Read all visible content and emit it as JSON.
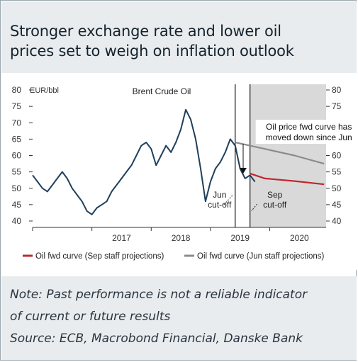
{
  "title_line1": "Stronger exchange rate and lower oil",
  "title_line2": "prices set to weigh on inflation outlook",
  "note_line1": "Note: Past performance is not a reliable indicator",
  "note_line2": "of current or future results",
  "note_line3": "Source: ECB, Macrobond Financial, Danske Bank",
  "chart_data": {
    "type": "line",
    "ylabel": "EUR/bbl",
    "ylim": [
      40,
      80
    ],
    "yticks": [
      40,
      45,
      50,
      55,
      60,
      65,
      70,
      75,
      80
    ],
    "xticks": [
      "2017",
      "2018",
      "2019",
      "2020"
    ],
    "grid": false,
    "legend_position": "bottom",
    "shaded_region": {
      "from": "2019-09",
      "to": "2020-12",
      "color": "#d9d9d9"
    },
    "vertical_lines": [
      {
        "x": "2019-06",
        "label": "Jun\ncut-off"
      },
      {
        "x": "2019-09",
        "label": "Sep\ncut-off"
      }
    ],
    "annotation": "Oil price fwd curve has\nmoved down since Jun",
    "series": [
      {
        "name": "Brent Crude Oil",
        "color": "#1f3f5c",
        "points": [
          [
            "2016-01",
            54
          ],
          [
            "2016-02",
            52
          ],
          [
            "2016-03",
            50
          ],
          [
            "2016-04",
            49
          ],
          [
            "2016-05",
            51
          ],
          [
            "2016-06",
            53
          ],
          [
            "2016-07",
            55
          ],
          [
            "2016-08",
            53
          ],
          [
            "2016-09",
            50
          ],
          [
            "2016-10",
            48
          ],
          [
            "2016-11",
            46
          ],
          [
            "2016-12",
            43
          ],
          [
            "2017-01",
            42
          ],
          [
            "2017-02",
            44
          ],
          [
            "2017-03",
            45
          ],
          [
            "2017-04",
            46
          ],
          [
            "2017-05",
            49
          ],
          [
            "2017-06",
            51
          ],
          [
            "2017-07",
            53
          ],
          [
            "2017-08",
            55
          ],
          [
            "2017-09",
            57
          ],
          [
            "2017-10",
            60
          ],
          [
            "2017-11",
            63
          ],
          [
            "2017-12",
            64
          ],
          [
            "2018-01",
            62
          ],
          [
            "2018-02",
            57
          ],
          [
            "2018-03",
            60
          ],
          [
            "2018-04",
            63
          ],
          [
            "2018-05",
            61
          ],
          [
            "2018-06",
            64
          ],
          [
            "2018-07",
            68
          ],
          [
            "2018-08",
            74
          ],
          [
            "2018-09",
            71
          ],
          [
            "2018-10",
            65
          ],
          [
            "2018-11",
            56
          ],
          [
            "2018-12",
            46
          ],
          [
            "2019-01",
            52
          ],
          [
            "2019-02",
            56
          ],
          [
            "2019-03",
            58
          ],
          [
            "2019-04",
            61
          ],
          [
            "2019-05",
            65
          ],
          [
            "2019-06",
            63
          ],
          [
            "2019-07",
            56
          ],
          [
            "2019-08",
            53
          ],
          [
            "2019-09",
            54
          ],
          [
            "2019-10",
            52
          ]
        ]
      },
      {
        "name": "Oil fwd curve (Jun staff projections)",
        "color": "#8c8c8c",
        "points": [
          [
            "2019-06",
            64
          ],
          [
            "2019-09",
            63
          ],
          [
            "2019-12",
            62
          ],
          [
            "2020-06",
            60
          ],
          [
            "2020-12",
            57.5
          ]
        ]
      },
      {
        "name": "Oil fwd curve (Sep staff projections)",
        "color": "#c0282d",
        "points": [
          [
            "2019-09",
            54.5
          ],
          [
            "2019-12",
            53
          ],
          [
            "2020-06",
            52.2
          ],
          [
            "2020-12",
            51.2
          ]
        ]
      }
    ],
    "legend": [
      "Oil fwd curve (Sep staff projections)",
      "Oil fwd curve (Jun staff projections)"
    ]
  }
}
